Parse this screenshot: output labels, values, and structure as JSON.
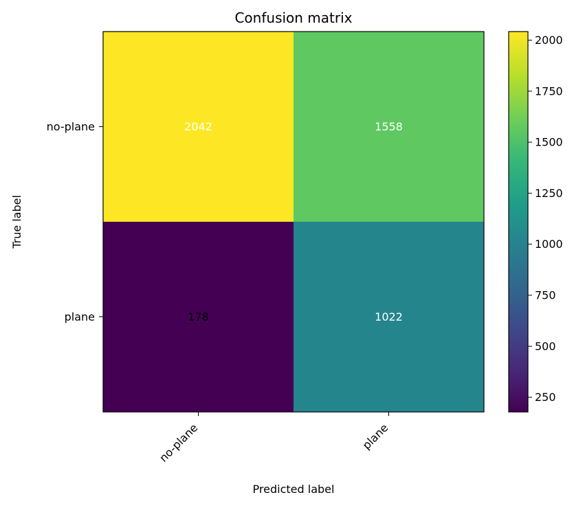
{
  "chart_data": {
    "type": "heatmap",
    "title": "Confusion matrix",
    "xlabel": "Predicted label",
    "ylabel": "True label",
    "x_categories": [
      "no-plane",
      "plane"
    ],
    "y_categories": [
      "no-plane",
      "plane"
    ],
    "values": [
      [
        2042,
        1558
      ],
      [
        178,
        1022
      ]
    ],
    "cell_text_colors": [
      [
        "#ffffff",
        "#ffffff"
      ],
      [
        "#000000",
        "#ffffff"
      ]
    ],
    "colormap": "viridis",
    "colorbar": {
      "min": 178,
      "max": 2042,
      "ticks": [
        250,
        500,
        750,
        1000,
        1250,
        1500,
        1750,
        2000
      ],
      "tick_labels": [
        "250",
        "500",
        "750",
        "1000",
        "1250",
        "1500",
        "1750",
        "2000"
      ]
    }
  }
}
